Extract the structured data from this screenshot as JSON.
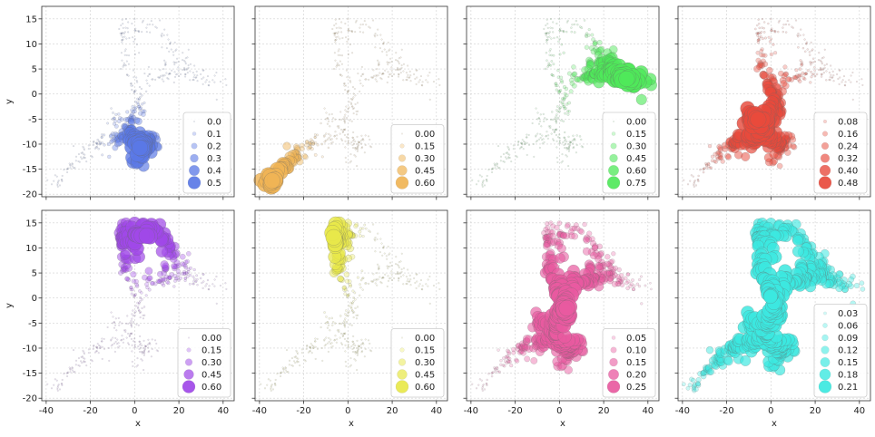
{
  "figure": {
    "xlabel": "x",
    "ylabel": "y",
    "xticks": [
      -40,
      -20,
      0,
      20,
      40
    ],
    "yticks": [
      -20,
      -15,
      -10,
      -5,
      0,
      5,
      10,
      15
    ],
    "xlim": [
      -42,
      45
    ],
    "ylim": [
      -20.5,
      17.5
    ],
    "grid": true
  },
  "chart_data": [
    {
      "type": "scatter",
      "panel": "row1-col1",
      "color": "#5a78e6",
      "hotspot": "lower-center cluster (x≈0–10, y≈-15 to -5)",
      "legend_position": "lower-right",
      "legend": [
        "0.0",
        "0.1",
        "0.2",
        "0.3",
        "0.4",
        "0.5"
      ],
      "size_levels": [
        0.0,
        0.1,
        0.2,
        0.3,
        0.4,
        0.5
      ]
    },
    {
      "type": "scatter",
      "panel": "row1-col2",
      "color": "#f0b455",
      "hotspot": "lower-left arm (x≈-40 to -20, y≈-18 to -10)",
      "legend_position": "lower-right",
      "legend": [
        "0.00",
        "0.15",
        "0.30",
        "0.45",
        "0.60"
      ],
      "size_levels": [
        0.0,
        0.15,
        0.3,
        0.45,
        0.6
      ]
    },
    {
      "type": "scatter",
      "panel": "row1-col3",
      "color": "#4fe85a",
      "hotspot": "upper-right arm (x≈0–40, y≈0–10)",
      "legend_position": "lower-right",
      "legend": [
        "0.00",
        "0.15",
        "0.30",
        "0.45",
        "0.60",
        "0.75"
      ],
      "size_levels": [
        0.0,
        0.15,
        0.3,
        0.45,
        0.6,
        0.75
      ]
    },
    {
      "type": "scatter",
      "panel": "row1-col4",
      "color": "#e84a3c",
      "hotspot": "central region (x≈-20 to 10, y≈-12 to 0)",
      "legend_position": "lower-right",
      "legend": [
        "0.08",
        "0.16",
        "0.24",
        "0.32",
        "0.40",
        "0.48"
      ],
      "size_levels": [
        0.08,
        0.16,
        0.24,
        0.32,
        0.4,
        0.48
      ]
    },
    {
      "type": "scatter",
      "panel": "row2-col1",
      "color": "#a048e8",
      "hotspot": "upper branch (x≈-10 to 20, y≈7–16)",
      "legend_position": "lower-right",
      "legend": [
        "0.00",
        "0.15",
        "0.30",
        "0.45",
        "0.60"
      ],
      "size_levels": [
        0.0,
        0.15,
        0.3,
        0.45,
        0.6
      ]
    },
    {
      "type": "scatter",
      "panel": "row2-col2",
      "color": "#e8e84a",
      "hotspot": "top cluster (x≈-12 to 0, y≈5–16)",
      "legend_position": "lower-right",
      "legend": [
        "0.00",
        "0.15",
        "0.30",
        "0.45",
        "0.60"
      ],
      "size_levels": [
        0.0,
        0.15,
        0.3,
        0.45,
        0.6
      ]
    },
    {
      "type": "scatter",
      "panel": "row2-col3",
      "color": "#e85aa0",
      "hotspot": "middle band (x≈-20 to 30, y≈-10 to 5)",
      "legend_position": "lower-right",
      "legend": [
        "0.05",
        "0.10",
        "0.15",
        "0.20",
        "0.25"
      ],
      "size_levels": [
        0.05,
        0.1,
        0.15,
        0.2,
        0.25
      ]
    },
    {
      "type": "scatter",
      "panel": "row2-col4",
      "color": "#3ce8e0",
      "hotspot": "broad coverage, strongest x≈-10 to 20",
      "legend_position": "lower-right",
      "legend": [
        "0.03",
        "0.06",
        "0.09",
        "0.12",
        "0.15",
        "0.18",
        "0.21"
      ],
      "size_levels": [
        0.03,
        0.06,
        0.09,
        0.12,
        0.15,
        0.18,
        0.21
      ]
    }
  ]
}
